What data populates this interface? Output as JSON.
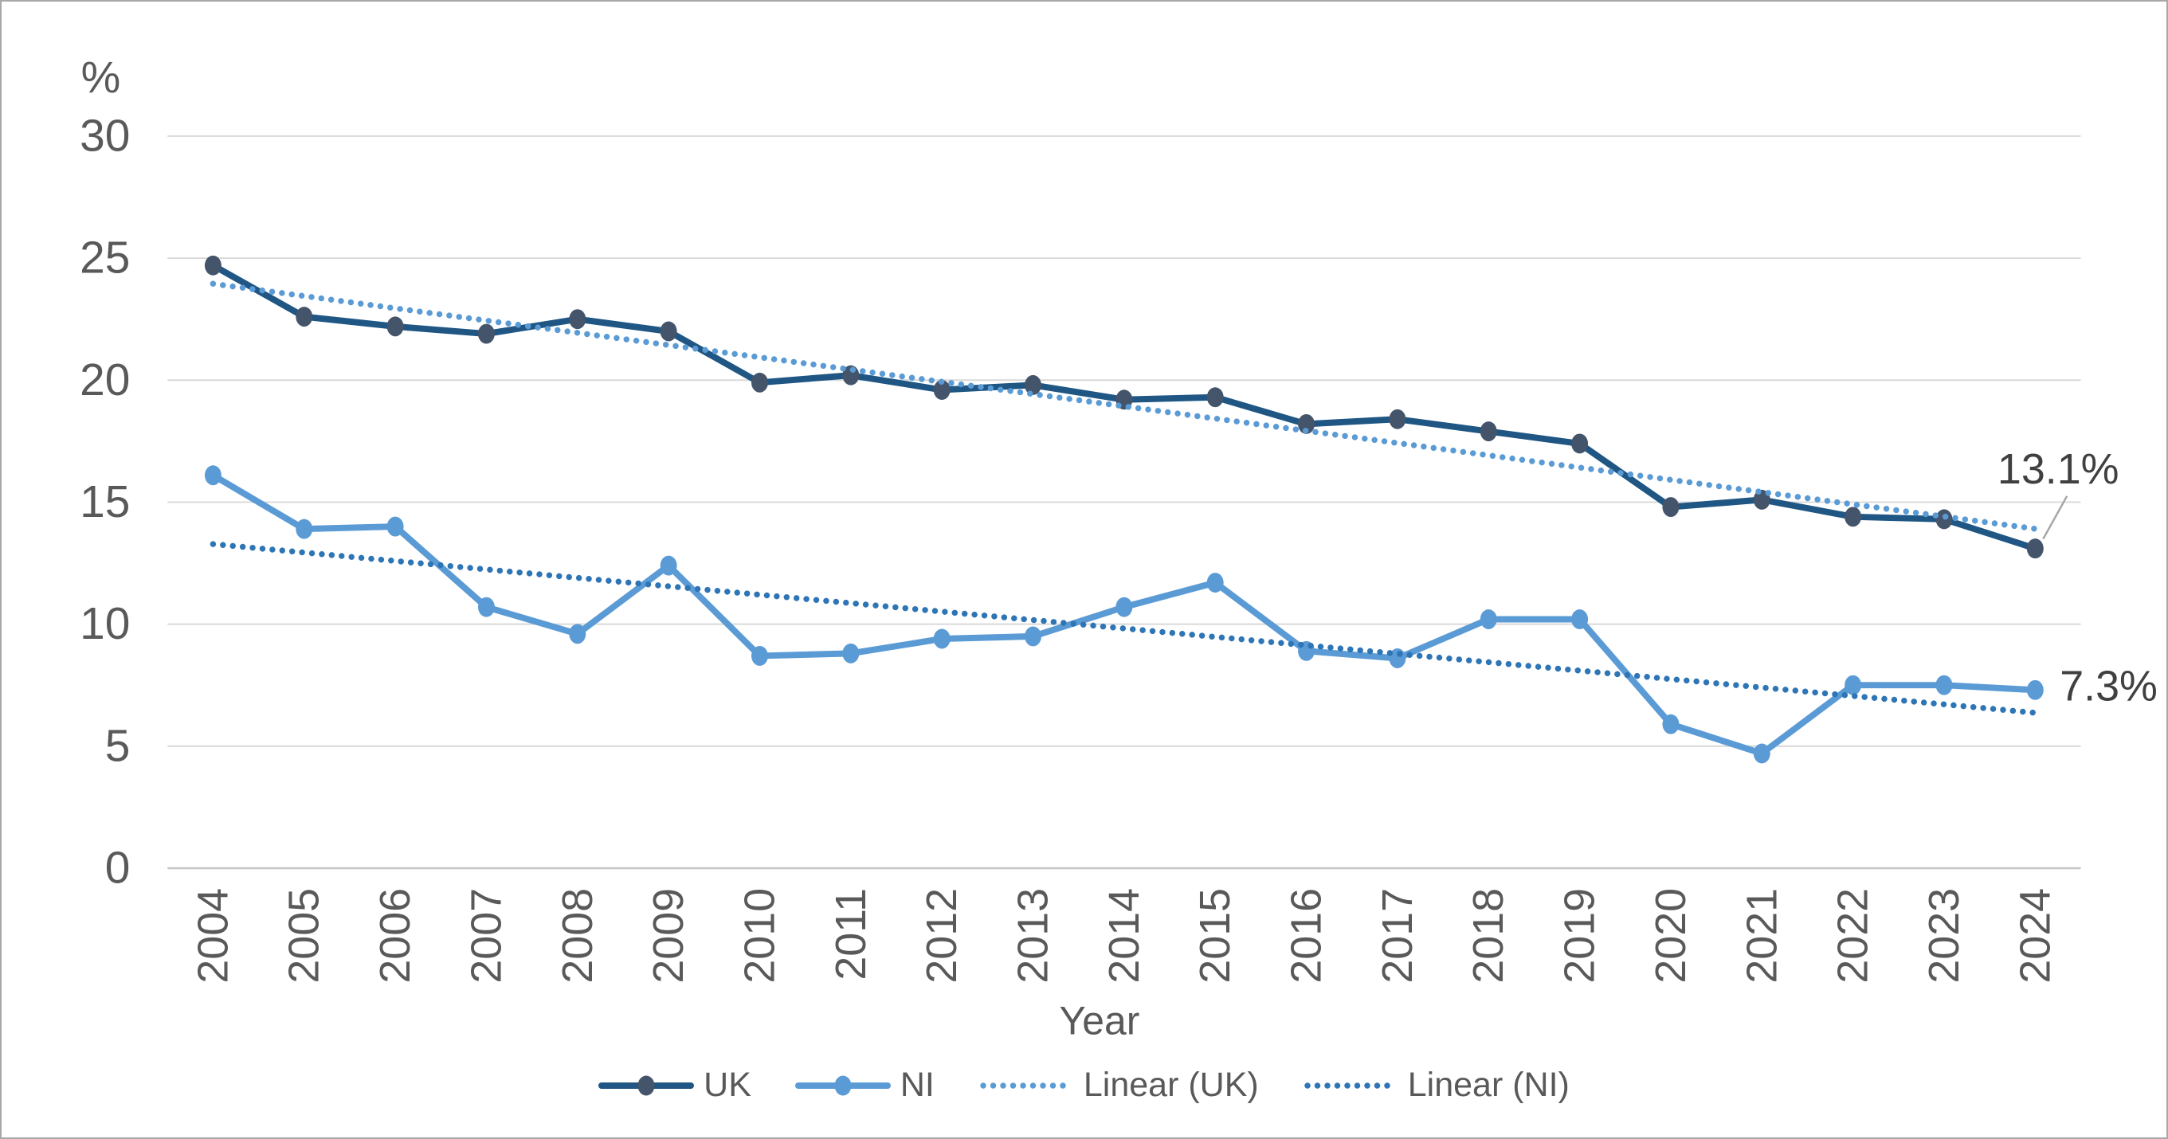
{
  "figure": {
    "background": "#FFFFFF",
    "border_color": "#A8A8A8",
    "text_color": "#595959",
    "annotation_text_color": "#404040",
    "gridline_color": "#D9D9D9",
    "axisline_color": "#C6C6C6",
    "leader_line_color": "#A6A6A6"
  },
  "chart_data": {
    "type": "line",
    "title": "",
    "xlabel": "Year",
    "ylabel": "%",
    "ylim": [
      0,
      30
    ],
    "yticks": [
      0,
      5,
      10,
      15,
      20,
      25,
      30
    ],
    "grid": "horizontal",
    "legend_position": "bottom",
    "x": [
      2004,
      2005,
      2006,
      2007,
      2008,
      2009,
      2010,
      2011,
      2012,
      2013,
      2014,
      2015,
      2016,
      2017,
      2018,
      2019,
      2020,
      2021,
      2022,
      2023,
      2024
    ],
    "series": [
      {
        "name": "UK",
        "type": "line",
        "color": "#1F5684",
        "marker_color": "#44546A",
        "values": [
          24.7,
          22.6,
          22.2,
          21.9,
          22.5,
          22.0,
          19.9,
          20.2,
          19.6,
          19.8,
          19.2,
          19.3,
          18.2,
          18.4,
          17.9,
          17.4,
          14.8,
          15.1,
          14.4,
          14.3,
          13.1
        ]
      },
      {
        "name": "NI",
        "type": "line",
        "color": "#5B9BD5",
        "marker_color": "#5B9BD5",
        "values": [
          16.1,
          13.9,
          14.0,
          10.7,
          9.6,
          12.4,
          8.7,
          8.8,
          9.4,
          9.5,
          10.7,
          11.7,
          8.9,
          8.6,
          10.2,
          10.2,
          5.9,
          4.7,
          7.5,
          7.5,
          7.3
        ]
      },
      {
        "name": "Linear (UK)",
        "type": "trend",
        "style": "dotted",
        "color": "#5B9BD5",
        "regression_of": "UK"
      },
      {
        "name": "Linear (NI)",
        "type": "trend",
        "style": "dotted",
        "color": "#2E75B6",
        "regression_of": "NI"
      }
    ],
    "annotations": [
      {
        "text": "13.1%",
        "series": "UK",
        "at_x": 2024
      },
      {
        "text": "7.3%",
        "series": "NI",
        "at_x": 2024
      }
    ]
  }
}
